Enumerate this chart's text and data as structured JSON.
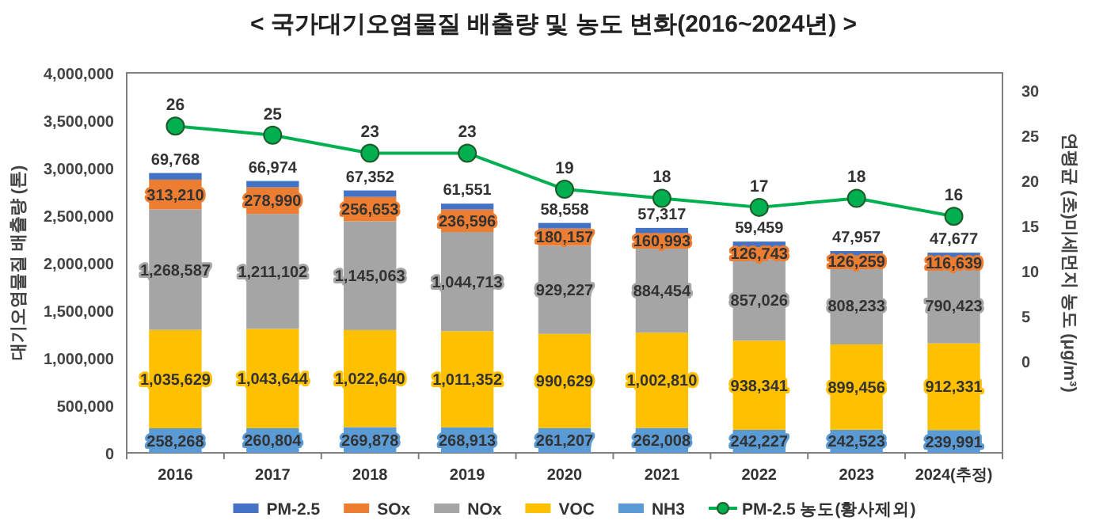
{
  "chart_data": {
    "type": "bar",
    "stacked": true,
    "title": "< 국가대기오염물질 배출량 및 농도 변화(2016~2024년) >",
    "ylabel": "대기오염물질 배출량 (톤)",
    "y2label": "연평균 (초)미세먼지 농도 (μg/m³)",
    "categories": [
      "2016",
      "2017",
      "2018",
      "2019",
      "2020",
      "2021",
      "2022",
      "2023",
      "2024(추정)"
    ],
    "series": [
      {
        "name": "NH3",
        "color": "#5b9bd5",
        "values": [
          258268,
          260804,
          269878,
          268913,
          261207,
          262008,
          242227,
          242523,
          239991
        ],
        "value_labels": [
          "258,268",
          "260,804",
          "269,878",
          "268,913",
          "261,207",
          "262,008",
          "242,227",
          "242,523",
          "239,991"
        ]
      },
      {
        "name": "VOC",
        "color": "#ffc000",
        "values": [
          1035629,
          1043644,
          1022640,
          1011352,
          990629,
          1002810,
          938341,
          899456,
          912331
        ],
        "value_labels": [
          "1,035,629",
          "1,043,644",
          "1,022,640",
          "1,011,352",
          "990,629",
          "1,002,810",
          "938,341",
          "899,456",
          "912,331"
        ]
      },
      {
        "name": "NOx",
        "color": "#a5a5a5",
        "values": [
          1268587,
          1211102,
          1145063,
          1044713,
          929227,
          884454,
          857026,
          808233,
          790423
        ],
        "value_labels": [
          "1,268,587",
          "1,211,102",
          "1,145,063",
          "1,044,713",
          "929,227",
          "884,454",
          "857,026",
          "808,233",
          "790,423"
        ]
      },
      {
        "name": "SOx",
        "color": "#ed7d31",
        "values": [
          313210,
          278990,
          256653,
          236596,
          180157,
          160993,
          126743,
          126259,
          116639
        ],
        "value_labels": [
          "313,210",
          "278,990",
          "256,653",
          "236,596",
          "180,157",
          "160,993",
          "126,743",
          "126,259",
          "116,639"
        ]
      },
      {
        "name": "PM-2.5",
        "color": "#4472c4",
        "values": [
          69768,
          66974,
          67352,
          61551,
          58558,
          57317,
          59459,
          47957,
          47677
        ],
        "value_labels": [
          "69,768",
          "66,974",
          "67,352",
          "61,551",
          "58,558",
          "57,317",
          "59,459",
          "47,957",
          "47,677"
        ]
      },
      {
        "name": "PM-2.5 농도(황사제외)",
        "type": "line",
        "axis": "y2",
        "color": "#00b050",
        "marker": "circle",
        "values": [
          26,
          25,
          23,
          23,
          19,
          18,
          17,
          18,
          16
        ],
        "value_labels": [
          "26",
          "25",
          "23",
          "23",
          "19",
          "18",
          "17",
          "18",
          "16"
        ]
      }
    ],
    "ylim": [
      0,
      4000000
    ],
    "yticks": [
      {
        "value": 0,
        "label": "0"
      },
      {
        "value": 500000,
        "label": "500,000"
      },
      {
        "value": 1000000,
        "label": "1,000,000"
      },
      {
        "value": 1500000,
        "label": "1,500,000"
      },
      {
        "value": 2000000,
        "label": "2,000,000"
      },
      {
        "value": 2500000,
        "label": "2,500,000"
      },
      {
        "value": 3000000,
        "label": "3,000,000"
      },
      {
        "value": 3500000,
        "label": "3,500,000"
      },
      {
        "value": 4000000,
        "label": "4,000,000"
      }
    ],
    "y2lim": [
      -10.2,
      31.9
    ],
    "y2ticks": [
      0,
      5,
      10,
      15,
      20,
      25,
      30
    ],
    "grid": false,
    "legend": "bottom"
  }
}
